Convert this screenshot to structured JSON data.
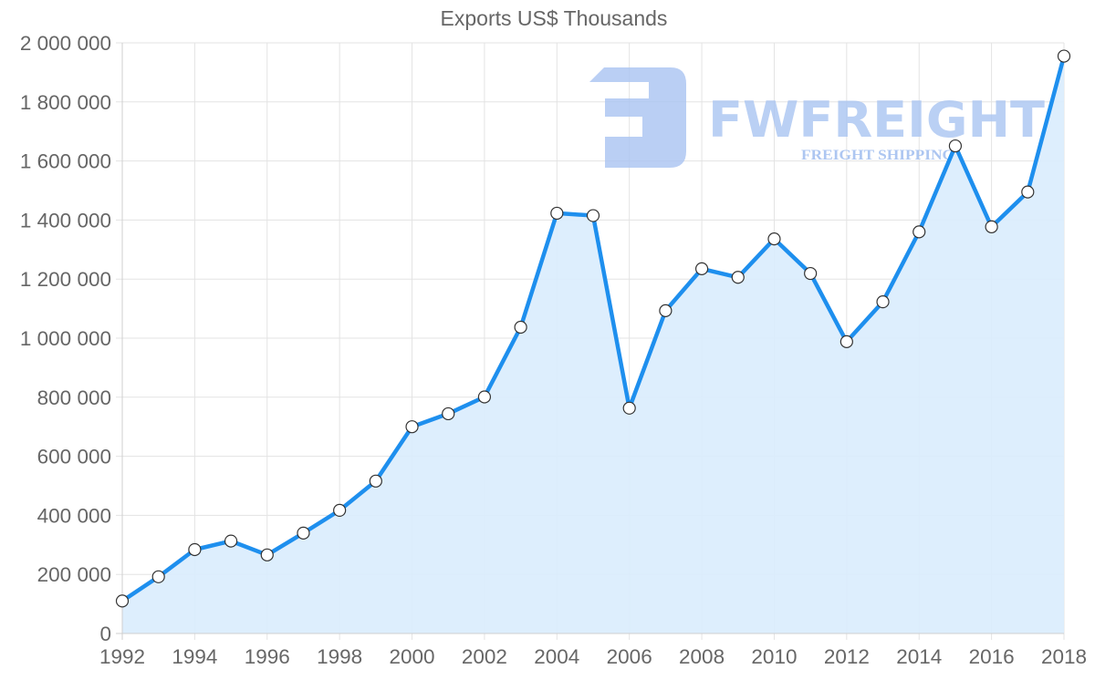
{
  "chart_data": {
    "type": "area",
    "title": "Exports US$ Thousands",
    "xlabel": "",
    "ylabel": "",
    "x": [
      1992,
      1993,
      1994,
      1995,
      1996,
      1997,
      1998,
      1999,
      2000,
      2001,
      2002,
      2003,
      2004,
      2005,
      2006,
      2007,
      2008,
      2009,
      2010,
      2011,
      2012,
      2013,
      2014,
      2015,
      2016,
      2017,
      2018
    ],
    "series": [
      {
        "name": "Exports US$ Thousands",
        "values": [
          110000,
          192000,
          284000,
          313000,
          266000,
          340000,
          417000,
          516000,
          700000,
          744000,
          801000,
          1037000,
          1423000,
          1415000,
          763000,
          1093000,
          1235000,
          1206000,
          1336000,
          1219000,
          988000,
          1123000,
          1360000,
          1651000,
          1377000,
          1495000,
          1955000
        ]
      }
    ],
    "ylim": [
      0,
      2000000
    ],
    "xlim": [
      1992,
      2018
    ],
    "y_ticks": [
      "0",
      "200 000",
      "400 000",
      "600 000",
      "800 000",
      "1 000 000",
      "1 200 000",
      "1 400 000",
      "1 600 000",
      "1 800 000",
      "2 000 000"
    ],
    "x_ticks": [
      "1992",
      "1994",
      "1996",
      "1998",
      "2000",
      "2002",
      "2004",
      "2006",
      "2008",
      "2010",
      "2012",
      "2014",
      "2016",
      "2018"
    ],
    "grid": true,
    "legend": "none",
    "colors": {
      "line": "#1E8FEE",
      "fill": "#D9ECFD",
      "marker_fill": "#FFFFFF",
      "marker_stroke": "#333333",
      "grid": "#E3E3E3",
      "axis_text": "#666666",
      "watermark": "#A9C4F1"
    }
  },
  "watermark": {
    "brand": "FWFREIGHT",
    "tagline": "FREIGHT SHIPPING"
  }
}
